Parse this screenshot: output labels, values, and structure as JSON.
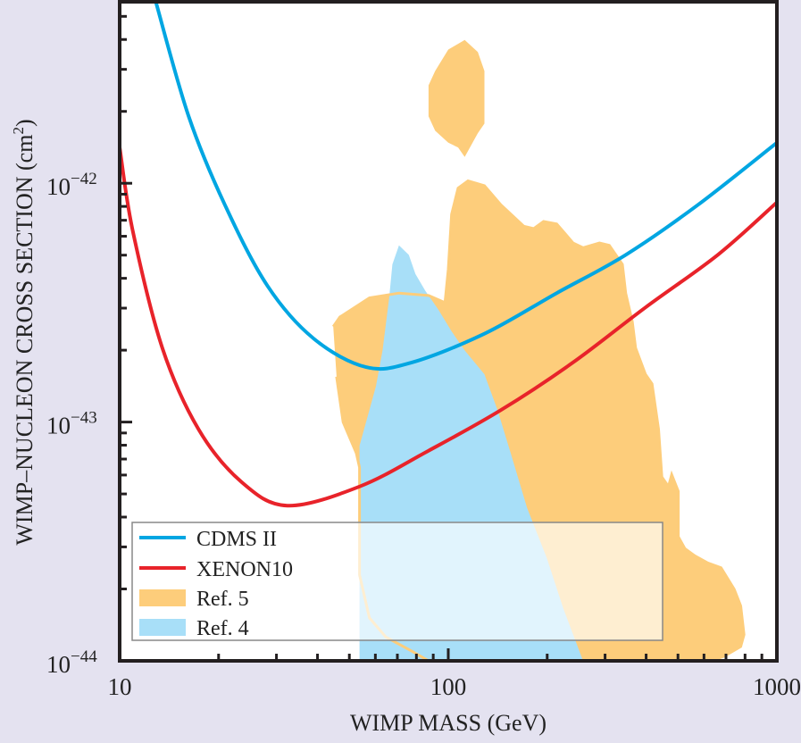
{
  "chart_data": {
    "type": "line",
    "xlabel": "WIMP MASS (GeV)",
    "ylabel": "WIMP–NUCLEON CROSS SECTION (cm",
    "ylabel_sup": "2",
    "ylabel_end": ")",
    "xscale": "log",
    "yscale": "log",
    "xlim": [
      10,
      1000
    ],
    "ylim_log10": [
      -44,
      -41.24
    ],
    "x_ticks": [
      {
        "value": 10,
        "label": "10"
      },
      {
        "value": 100,
        "label": "100"
      },
      {
        "value": 1000,
        "label": "1000"
      }
    ],
    "y_ticks": [
      {
        "log10": -42,
        "base": "10",
        "exp": "−42"
      },
      {
        "log10": -43,
        "base": "10",
        "exp": "−43"
      },
      {
        "log10": -44,
        "base": "10",
        "exp": "−44"
      }
    ],
    "legend": {
      "placement": "lower-left",
      "entries": [
        {
          "label": "CDMS II",
          "kind": "line",
          "color": "#00a6e2"
        },
        {
          "label": "XENON10",
          "kind": "line",
          "color": "#e8232a"
        },
        {
          "label": "Ref. 5",
          "kind": "area",
          "color": "#fdcd7b"
        },
        {
          "label": "Ref. 4",
          "kind": "area",
          "color": "#a8dff8"
        }
      ]
    },
    "series": [
      {
        "name": "CDMS II",
        "color": "#00a6e2",
        "points_log10": [
          [
            1.11,
            -41.24
          ],
          [
            1.21,
            -41.72
          ],
          [
            1.32,
            -42.09
          ],
          [
            1.45,
            -42.43
          ],
          [
            1.59,
            -42.65
          ],
          [
            1.75,
            -42.77
          ],
          [
            1.89,
            -42.75
          ],
          [
            2.11,
            -42.63
          ],
          [
            2.33,
            -42.46
          ],
          [
            2.54,
            -42.3
          ],
          [
            2.76,
            -42.09
          ],
          [
            3.0,
            -41.83
          ]
        ]
      },
      {
        "name": "XENON10",
        "color": "#e8232a",
        "points_log10": [
          [
            1.0,
            -41.85
          ],
          [
            1.04,
            -42.2
          ],
          [
            1.13,
            -42.69
          ],
          [
            1.24,
            -43.03
          ],
          [
            1.37,
            -43.25
          ],
          [
            1.51,
            -43.35
          ],
          [
            1.73,
            -43.27
          ],
          [
            1.94,
            -43.12
          ],
          [
            2.16,
            -42.95
          ],
          [
            2.38,
            -42.75
          ],
          [
            2.6,
            -42.52
          ],
          [
            2.82,
            -42.3
          ],
          [
            3.0,
            -42.08
          ]
        ]
      }
    ],
    "regions": [
      {
        "name": "Ref. 5",
        "color": "#fdcd7b",
        "polygons_log10": [
          [
            [
              1.65,
              -42.6
            ],
            [
              1.67,
              -42.56
            ],
            [
              1.76,
              -42.48
            ],
            [
              1.85,
              -42.46
            ],
            [
              1.94,
              -42.47
            ],
            [
              1.99,
              -42.5
            ],
            [
              2.0,
              -42.36
            ],
            [
              2.01,
              -42.13
            ],
            [
              2.03,
              -42.02
            ],
            [
              2.06,
              -41.99
            ],
            [
              2.11,
              -42.01
            ],
            [
              2.16,
              -42.09
            ],
            [
              2.23,
              -42.18
            ],
            [
              2.26,
              -42.19
            ],
            [
              2.29,
              -42.16
            ],
            [
              2.33,
              -42.17
            ],
            [
              2.38,
              -42.25
            ],
            [
              2.41,
              -42.27
            ],
            [
              2.46,
              -42.25
            ],
            [
              2.49,
              -42.26
            ],
            [
              2.53,
              -42.34
            ],
            [
              2.54,
              -42.46
            ],
            [
              2.56,
              -42.58
            ],
            [
              2.57,
              -42.69
            ],
            [
              2.6,
              -42.8
            ],
            [
              2.62,
              -42.84
            ],
            [
              2.64,
              -43.03
            ],
            [
              2.65,
              -43.23
            ],
            [
              2.67,
              -43.27
            ],
            [
              2.68,
              -43.22
            ],
            [
              2.7,
              -43.29
            ],
            [
              2.7,
              -43.48
            ],
            [
              2.72,
              -43.53
            ],
            [
              2.75,
              -43.56
            ],
            [
              2.79,
              -43.59
            ],
            [
              2.83,
              -43.61
            ],
            [
              2.87,
              -43.7
            ],
            [
              2.89,
              -43.77
            ],
            [
              2.9,
              -43.89
            ],
            [
              2.89,
              -43.94
            ],
            [
              2.84,
              -43.98
            ],
            [
              2.8,
              -44.0
            ],
            [
              1.94,
              -44.0
            ],
            [
              1.89,
              -43.96
            ],
            [
              1.81,
              -43.9
            ],
            [
              1.76,
              -43.82
            ],
            [
              1.73,
              -43.64
            ],
            [
              1.73,
              -43.34
            ],
            [
              1.73,
              -43.19
            ],
            [
              1.72,
              -43.13
            ],
            [
              1.68,
              -43.0
            ],
            [
              1.66,
              -42.81
            ]
          ],
          [
            [
              1.94,
              -41.59
            ],
            [
              1.94,
              -41.72
            ],
            [
              1.96,
              -41.78
            ],
            [
              2.0,
              -41.83
            ],
            [
              2.03,
              -41.85
            ],
            [
              2.05,
              -41.89
            ],
            [
              2.09,
              -41.79
            ],
            [
              2.11,
              -41.75
            ],
            [
              2.11,
              -41.6
            ],
            [
              2.11,
              -41.53
            ],
            [
              2.09,
              -41.45
            ],
            [
              2.05,
              -41.4
            ],
            [
              2.0,
              -41.44
            ],
            [
              1.96,
              -41.53
            ]
          ]
        ]
      },
      {
        "name": "Ref. 4",
        "color": "#a8dff8",
        "polygons_log10": [
          [
            [
              1.85,
              -42.26
            ],
            [
              1.88,
              -42.3
            ],
            [
              1.9,
              -42.38
            ],
            [
              1.93,
              -42.45
            ],
            [
              1.97,
              -42.53
            ],
            [
              2.01,
              -42.62
            ],
            [
              2.05,
              -42.7
            ],
            [
              2.11,
              -42.8
            ],
            [
              2.15,
              -42.95
            ],
            [
              2.19,
              -43.13
            ],
            [
              2.24,
              -43.36
            ],
            [
              2.3,
              -43.57
            ],
            [
              2.35,
              -43.78
            ],
            [
              2.41,
              -44.0
            ],
            [
              1.73,
              -44.0
            ],
            [
              1.73,
              -43.33
            ],
            [
              1.73,
              -43.1
            ],
            [
              1.78,
              -42.85
            ],
            [
              1.8,
              -42.7
            ],
            [
              1.82,
              -42.48
            ],
            [
              1.83,
              -42.34
            ]
          ]
        ]
      }
    ]
  }
}
